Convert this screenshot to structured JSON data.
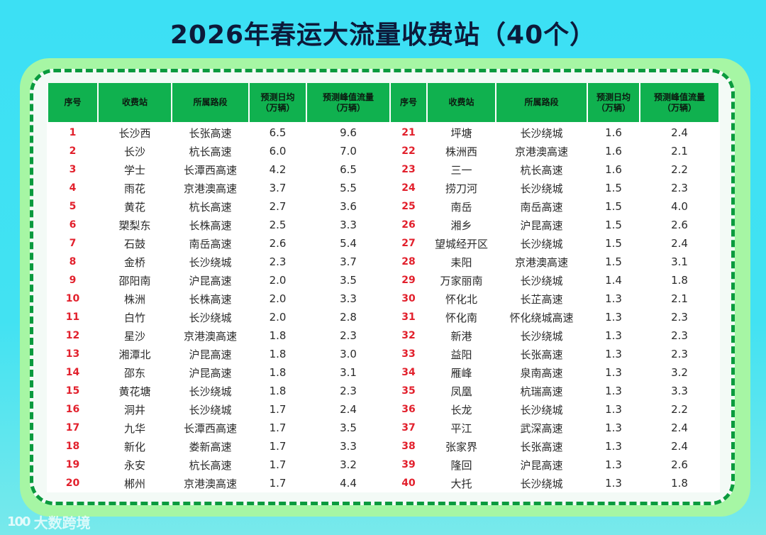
{
  "title": "2026年春运大流量收费站（40个）",
  "colors": {
    "background": "#3ce0f4",
    "outer_panel": "#a6f6a4",
    "dashed_border": "#0a9a3e",
    "header_bg": "#10b14f",
    "index_text": "#e2202c"
  },
  "table": {
    "headers": {
      "index": "序号",
      "station": "收费站",
      "road": "所属路段",
      "daily_avg_line1": "预测日均",
      "daily_avg_line2": "（万辆）",
      "peak_line1": "预测峰值流量",
      "peak_line2": "（万辆）"
    },
    "rows": [
      {
        "idx": "1",
        "station": "长沙西",
        "road": "长张高速",
        "avg": "6.5",
        "peak": "9.6"
      },
      {
        "idx": "2",
        "station": "长沙",
        "road": "杭长高速",
        "avg": "6.0",
        "peak": "7.0"
      },
      {
        "idx": "3",
        "station": "学士",
        "road": "长潭西高速",
        "avg": "4.2",
        "peak": "6.5"
      },
      {
        "idx": "4",
        "station": "雨花",
        "road": "京港澳高速",
        "avg": "3.7",
        "peak": "5.5"
      },
      {
        "idx": "5",
        "station": "黄花",
        "road": "杭长高速",
        "avg": "2.7",
        "peak": "3.6"
      },
      {
        "idx": "6",
        "station": "槊梨东",
        "road": "长株高速",
        "avg": "2.5",
        "peak": "3.3"
      },
      {
        "idx": "7",
        "station": "石鼓",
        "road": "南岳高速",
        "avg": "2.6",
        "peak": "5.4"
      },
      {
        "idx": "8",
        "station": "金桥",
        "road": "长沙绕城",
        "avg": "2.3",
        "peak": "3.7"
      },
      {
        "idx": "9",
        "station": "邵阳南",
        "road": "沪昆高速",
        "avg": "2.0",
        "peak": "3.5"
      },
      {
        "idx": "10",
        "station": "株洲",
        "road": "长株高速",
        "avg": "2.0",
        "peak": "3.3"
      },
      {
        "idx": "11",
        "station": "白竹",
        "road": "长沙绕城",
        "avg": "2.0",
        "peak": "2.8"
      },
      {
        "idx": "12",
        "station": "星沙",
        "road": "京港澳高速",
        "avg": "1.8",
        "peak": "2.3"
      },
      {
        "idx": "13",
        "station": "湘潭北",
        "road": "沪昆高速",
        "avg": "1.8",
        "peak": "3.0"
      },
      {
        "idx": "14",
        "station": "邵东",
        "road": "沪昆高速",
        "avg": "1.8",
        "peak": "3.1"
      },
      {
        "idx": "15",
        "station": "黄花塘",
        "road": "长沙绕城",
        "avg": "1.8",
        "peak": "2.3"
      },
      {
        "idx": "16",
        "station": "洞井",
        "road": "长沙绕城",
        "avg": "1.7",
        "peak": "2.4"
      },
      {
        "idx": "17",
        "station": "九华",
        "road": "长潭西高速",
        "avg": "1.7",
        "peak": "3.5"
      },
      {
        "idx": "18",
        "station": "新化",
        "road": "娄新高速",
        "avg": "1.7",
        "peak": "3.3"
      },
      {
        "idx": "19",
        "station": "永安",
        "road": "杭长高速",
        "avg": "1.7",
        "peak": "3.2"
      },
      {
        "idx": "20",
        "station": "郴州",
        "road": "京港澳高速",
        "avg": "1.7",
        "peak": "4.4"
      },
      {
        "idx": "21",
        "station": "坪塘",
        "road": "长沙绕城",
        "avg": "1.6",
        "peak": "2.4"
      },
      {
        "idx": "22",
        "station": "株洲西",
        "road": "京港澳高速",
        "avg": "1.6",
        "peak": "2.1"
      },
      {
        "idx": "23",
        "station": "三一",
        "road": "杭长高速",
        "avg": "1.6",
        "peak": "2.2"
      },
      {
        "idx": "24",
        "station": "捞刀河",
        "road": "长沙绕城",
        "avg": "1.5",
        "peak": "2.3"
      },
      {
        "idx": "25",
        "station": "南岳",
        "road": "南岳高速",
        "avg": "1.5",
        "peak": "4.0"
      },
      {
        "idx": "26",
        "station": "湘乡",
        "road": "沪昆高速",
        "avg": "1.5",
        "peak": "2.6"
      },
      {
        "idx": "27",
        "station": "望城经开区",
        "road": "长沙绕城",
        "avg": "1.5",
        "peak": "2.4"
      },
      {
        "idx": "28",
        "station": "耒阳",
        "road": "京港澳高速",
        "avg": "1.5",
        "peak": "3.1"
      },
      {
        "idx": "29",
        "station": "万家丽南",
        "road": "长沙绕城",
        "avg": "1.4",
        "peak": "1.8"
      },
      {
        "idx": "30",
        "station": "怀化北",
        "road": "长芷高速",
        "avg": "1.3",
        "peak": "2.1"
      },
      {
        "idx": "31",
        "station": "怀化南",
        "road": "怀化绕城高速",
        "avg": "1.3",
        "peak": "2.3"
      },
      {
        "idx": "32",
        "station": "新港",
        "road": "长沙绕城",
        "avg": "1.3",
        "peak": "2.3"
      },
      {
        "idx": "33",
        "station": "益阳",
        "road": "长张高速",
        "avg": "1.3",
        "peak": "2.3"
      },
      {
        "idx": "34",
        "station": "雁峰",
        "road": "泉南高速",
        "avg": "1.3",
        "peak": "3.2"
      },
      {
        "idx": "35",
        "station": "凤凰",
        "road": "杭瑞高速",
        "avg": "1.3",
        "peak": "3.3"
      },
      {
        "idx": "36",
        "station": "长龙",
        "road": "长沙绕城",
        "avg": "1.3",
        "peak": "2.2"
      },
      {
        "idx": "37",
        "station": "平江",
        "road": "武深高速",
        "avg": "1.3",
        "peak": "2.4"
      },
      {
        "idx": "38",
        "station": "张家界",
        "road": "长张高速",
        "avg": "1.3",
        "peak": "2.4"
      },
      {
        "idx": "39",
        "station": "隆回",
        "road": "沪昆高速",
        "avg": "1.3",
        "peak": "2.6"
      },
      {
        "idx": "40",
        "station": "大托",
        "road": "长沙绕城",
        "avg": "1.3",
        "peak": "1.8"
      }
    ]
  },
  "watermark": {
    "logo": "100",
    "text": "大数跨境"
  }
}
